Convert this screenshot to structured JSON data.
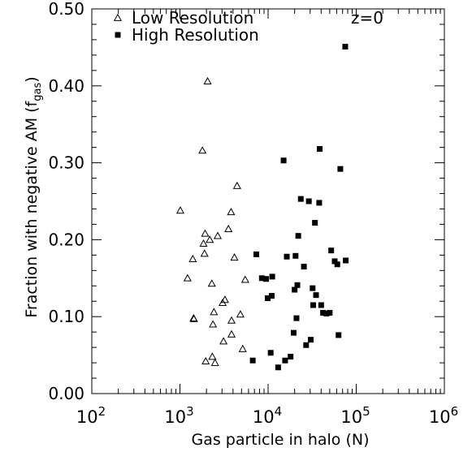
{
  "chart_data": {
    "type": "scatter",
    "title": "",
    "annotation": "z=0",
    "xlabel": "Gas particle in halo (N)",
    "ylabel": "Fraction with negative AM (f",
    "ylabel_sub": "gas",
    "ylabel_close": ")",
    "x_scale": "log",
    "xlim": [
      100,
      1000000
    ],
    "ylim": [
      0.0,
      0.5
    ],
    "grid": false,
    "legend_position": "top-left",
    "x_ticks": [
      {
        "value": 100,
        "base": "10",
        "exp": "2"
      },
      {
        "value": 1000,
        "base": "10",
        "exp": "3"
      },
      {
        "value": 10000,
        "base": "10",
        "exp": "4"
      },
      {
        "value": 100000,
        "base": "10",
        "exp": "5"
      },
      {
        "value": 1000000,
        "base": "10",
        "exp": "6"
      }
    ],
    "y_ticks": [
      {
        "value": 0.0,
        "label": "0.00"
      },
      {
        "value": 0.1,
        "label": "0.10"
      },
      {
        "value": 0.2,
        "label": "0.20"
      },
      {
        "value": 0.3,
        "label": "0.30"
      },
      {
        "value": 0.4,
        "label": "0.40"
      },
      {
        "value": 0.5,
        "label": "0.50"
      }
    ],
    "series": [
      {
        "name": "Low Resolution",
        "marker": "open-triangle",
        "color": "#000000",
        "points": [
          [
            1010,
            0.238
          ],
          [
            1220,
            0.15
          ],
          [
            1400,
            0.175
          ],
          [
            1430,
            0.098
          ],
          [
            1440,
            0.097
          ],
          [
            1800,
            0.316
          ],
          [
            1850,
            0.195
          ],
          [
            1900,
            0.182
          ],
          [
            1930,
            0.208
          ],
          [
            1960,
            0.042
          ],
          [
            2060,
            0.406
          ],
          [
            2180,
            0.2
          ],
          [
            2300,
            0.143
          ],
          [
            2330,
            0.048
          ],
          [
            2370,
            0.09
          ],
          [
            2430,
            0.106
          ],
          [
            2500,
            0.04
          ],
          [
            2680,
            0.205
          ],
          [
            3050,
            0.118
          ],
          [
            3120,
            0.068
          ],
          [
            3240,
            0.122
          ],
          [
            3550,
            0.214
          ],
          [
            3800,
            0.236
          ],
          [
            3850,
            0.095
          ],
          [
            3850,
            0.077
          ],
          [
            4150,
            0.177
          ],
          [
            4450,
            0.27
          ],
          [
            4850,
            0.103
          ],
          [
            5150,
            0.058
          ],
          [
            5500,
            0.148
          ]
        ]
      },
      {
        "name": "High Resolution",
        "marker": "filled-square",
        "color": "#000000",
        "points": [
          [
            6700,
            0.043
          ],
          [
            7350,
            0.181
          ],
          [
            8500,
            0.15
          ],
          [
            9500,
            0.149
          ],
          [
            9900,
            0.124
          ],
          [
            10700,
            0.053
          ],
          [
            11000,
            0.127
          ],
          [
            11150,
            0.152
          ],
          [
            13000,
            0.034
          ],
          [
            15000,
            0.303
          ],
          [
            15600,
            0.043
          ],
          [
            16300,
            0.178
          ],
          [
            18000,
            0.048
          ],
          [
            19500,
            0.079
          ],
          [
            20000,
            0.135
          ],
          [
            20500,
            0.179
          ],
          [
            21000,
            0.098
          ],
          [
            21500,
            0.141
          ],
          [
            22000,
            0.205
          ],
          [
            23500,
            0.253
          ],
          [
            25500,
            0.165
          ],
          [
            27000,
            0.063
          ],
          [
            29000,
            0.25
          ],
          [
            30500,
            0.07
          ],
          [
            32000,
            0.137
          ],
          [
            32500,
            0.115
          ],
          [
            34000,
            0.222
          ],
          [
            35000,
            0.128
          ],
          [
            38000,
            0.248
          ],
          [
            38500,
            0.318
          ],
          [
            40000,
            0.115
          ],
          [
            42000,
            0.105
          ],
          [
            46000,
            0.104
          ],
          [
            50000,
            0.105
          ],
          [
            52000,
            0.186
          ],
          [
            57000,
            0.172
          ],
          [
            61000,
            0.168
          ],
          [
            63000,
            0.076
          ],
          [
            66000,
            0.292
          ],
          [
            75000,
            0.451
          ],
          [
            76000,
            0.173
          ]
        ]
      }
    ]
  }
}
